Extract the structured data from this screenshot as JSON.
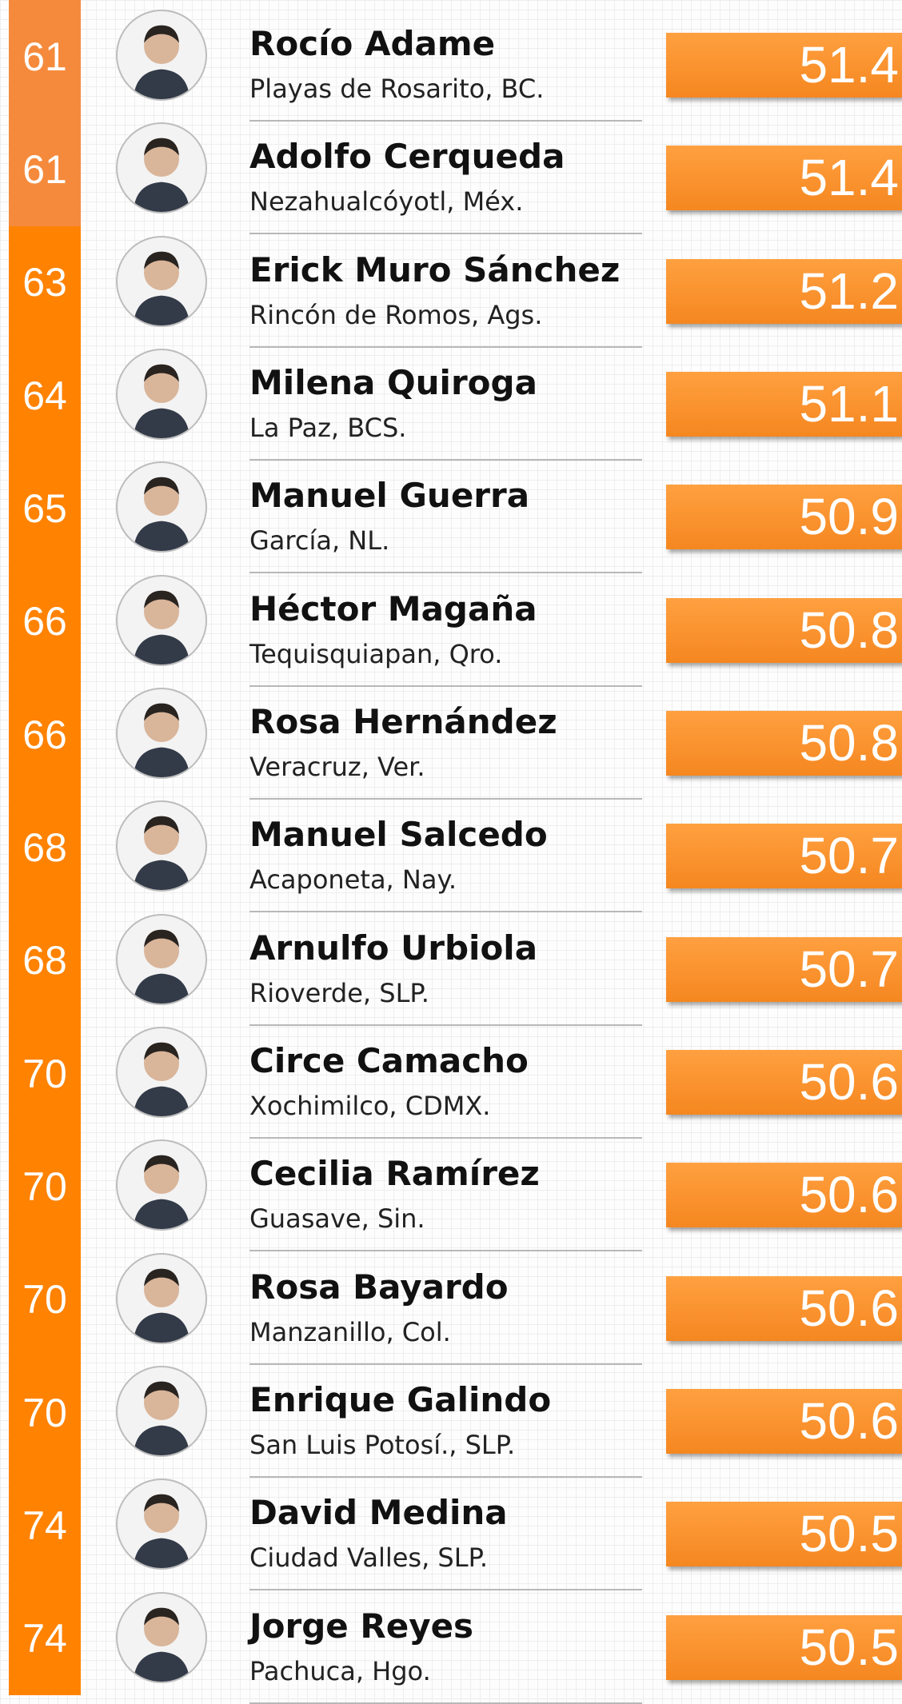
{
  "rows": [
    {
      "rank": "61",
      "name": "Rocío Adame",
      "place": "Playas de Rosarito, BC.",
      "score": "51.4"
    },
    {
      "rank": "61",
      "name": "Adolfo Cerqueda",
      "place": "Nezahualcóyotl, Méx.",
      "score": "51.4"
    },
    {
      "rank": "63",
      "name": "Erick Muro Sánchez",
      "place": "Rincón de Romos, Ags.",
      "score": "51.2"
    },
    {
      "rank": "64",
      "name": "Milena Quiroga",
      "place": "La Paz, BCS.",
      "score": "51.1"
    },
    {
      "rank": "65",
      "name": "Manuel Guerra",
      "place": "García, NL.",
      "score": "50.9"
    },
    {
      "rank": "66",
      "name": "Héctor Magaña",
      "place": "Tequisquiapan, Qro.",
      "score": "50.8"
    },
    {
      "rank": "66",
      "name": "Rosa Hernández",
      "place": "Veracruz, Ver.",
      "score": "50.8"
    },
    {
      "rank": "68",
      "name": "Manuel Salcedo",
      "place": "Acaponeta, Nay.",
      "score": "50.7"
    },
    {
      "rank": "68",
      "name": "Arnulfo Urbiola",
      "place": "Rioverde, SLP.",
      "score": "50.7"
    },
    {
      "rank": "70",
      "name": "Circe Camacho",
      "place": "Xochimilco, CDMX.",
      "score": "50.6"
    },
    {
      "rank": "70",
      "name": "Cecilia Ramírez",
      "place": "Guasave, Sin.",
      "score": "50.6"
    },
    {
      "rank": "70",
      "name": "Rosa Bayardo",
      "place": "Manzanillo, Col.",
      "score": "50.6"
    },
    {
      "rank": "70",
      "name": "Enrique Galindo",
      "place": "San Luis Potosí., SLP.",
      "score": "50.6"
    },
    {
      "rank": "74",
      "name": "David Medina",
      "place": "Ciudad Valles, SLP.",
      "score": "50.5"
    },
    {
      "rank": "74",
      "name": "Jorge Reyes",
      "place": "Pachuca, Hgo.",
      "score": "50.5"
    }
  ]
}
